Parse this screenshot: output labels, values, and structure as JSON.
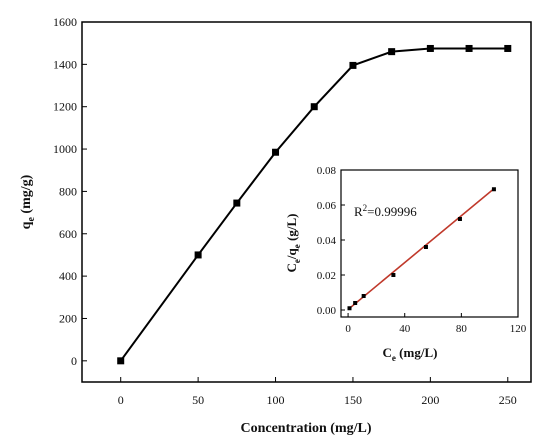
{
  "chart_data": [
    {
      "type": "line",
      "xlabel": "Concentration (mg/L)",
      "ylabel": "q",
      "ylabel_sub": "e",
      "ylabel_unit": " (mg/g)",
      "xlim": [
        -25,
        265
      ],
      "ylim": [
        -100,
        1600
      ],
      "xticks": [
        "0",
        "50",
        "100",
        "150",
        "200",
        "250"
      ],
      "yticks": [
        "0",
        "200",
        "400",
        "600",
        "800",
        "1000",
        "1200",
        "1400",
        "1600"
      ],
      "series": [
        {
          "x": [
            0,
            50,
            75,
            100,
            125,
            150,
            175,
            200,
            225,
            250
          ],
          "y": [
            0,
            500,
            745,
            985,
            1200,
            1395,
            1460,
            1475,
            1475,
            1475
          ],
          "marker": "square",
          "color": "#000000"
        }
      ]
    },
    {
      "type": "scatter",
      "inset": true,
      "xlabel": "C",
      "xlabel_sub": "e",
      "xlabel_unit": " (mg/L)",
      "ylabel_parts": [
        "C",
        "e",
        "/q",
        "e",
        " (g/L)"
      ],
      "xlim": [
        -5,
        120
      ],
      "ylim": [
        -0.004,
        0.08
      ],
      "xticks": [
        "0",
        "40",
        "80",
        "120"
      ],
      "yticks": [
        "0.00",
        "0.02",
        "0.04",
        "0.06",
        "0.08"
      ],
      "annotation_base": "R",
      "annotation_sup": "2",
      "annotation_rest": "=0.99996",
      "series": [
        {
          "x": [
            1,
            5,
            11,
            32,
            55,
            79,
            103
          ],
          "y": [
            0.001,
            0.004,
            0.008,
            0.02,
            0.036,
            0.052,
            0.069
          ],
          "marker": "square",
          "color": "#000000"
        }
      ],
      "fit_line": {
        "x": [
          0,
          103
        ],
        "y": [
          0.0003,
          0.0693
        ],
        "color": "#c0392b"
      }
    }
  ]
}
